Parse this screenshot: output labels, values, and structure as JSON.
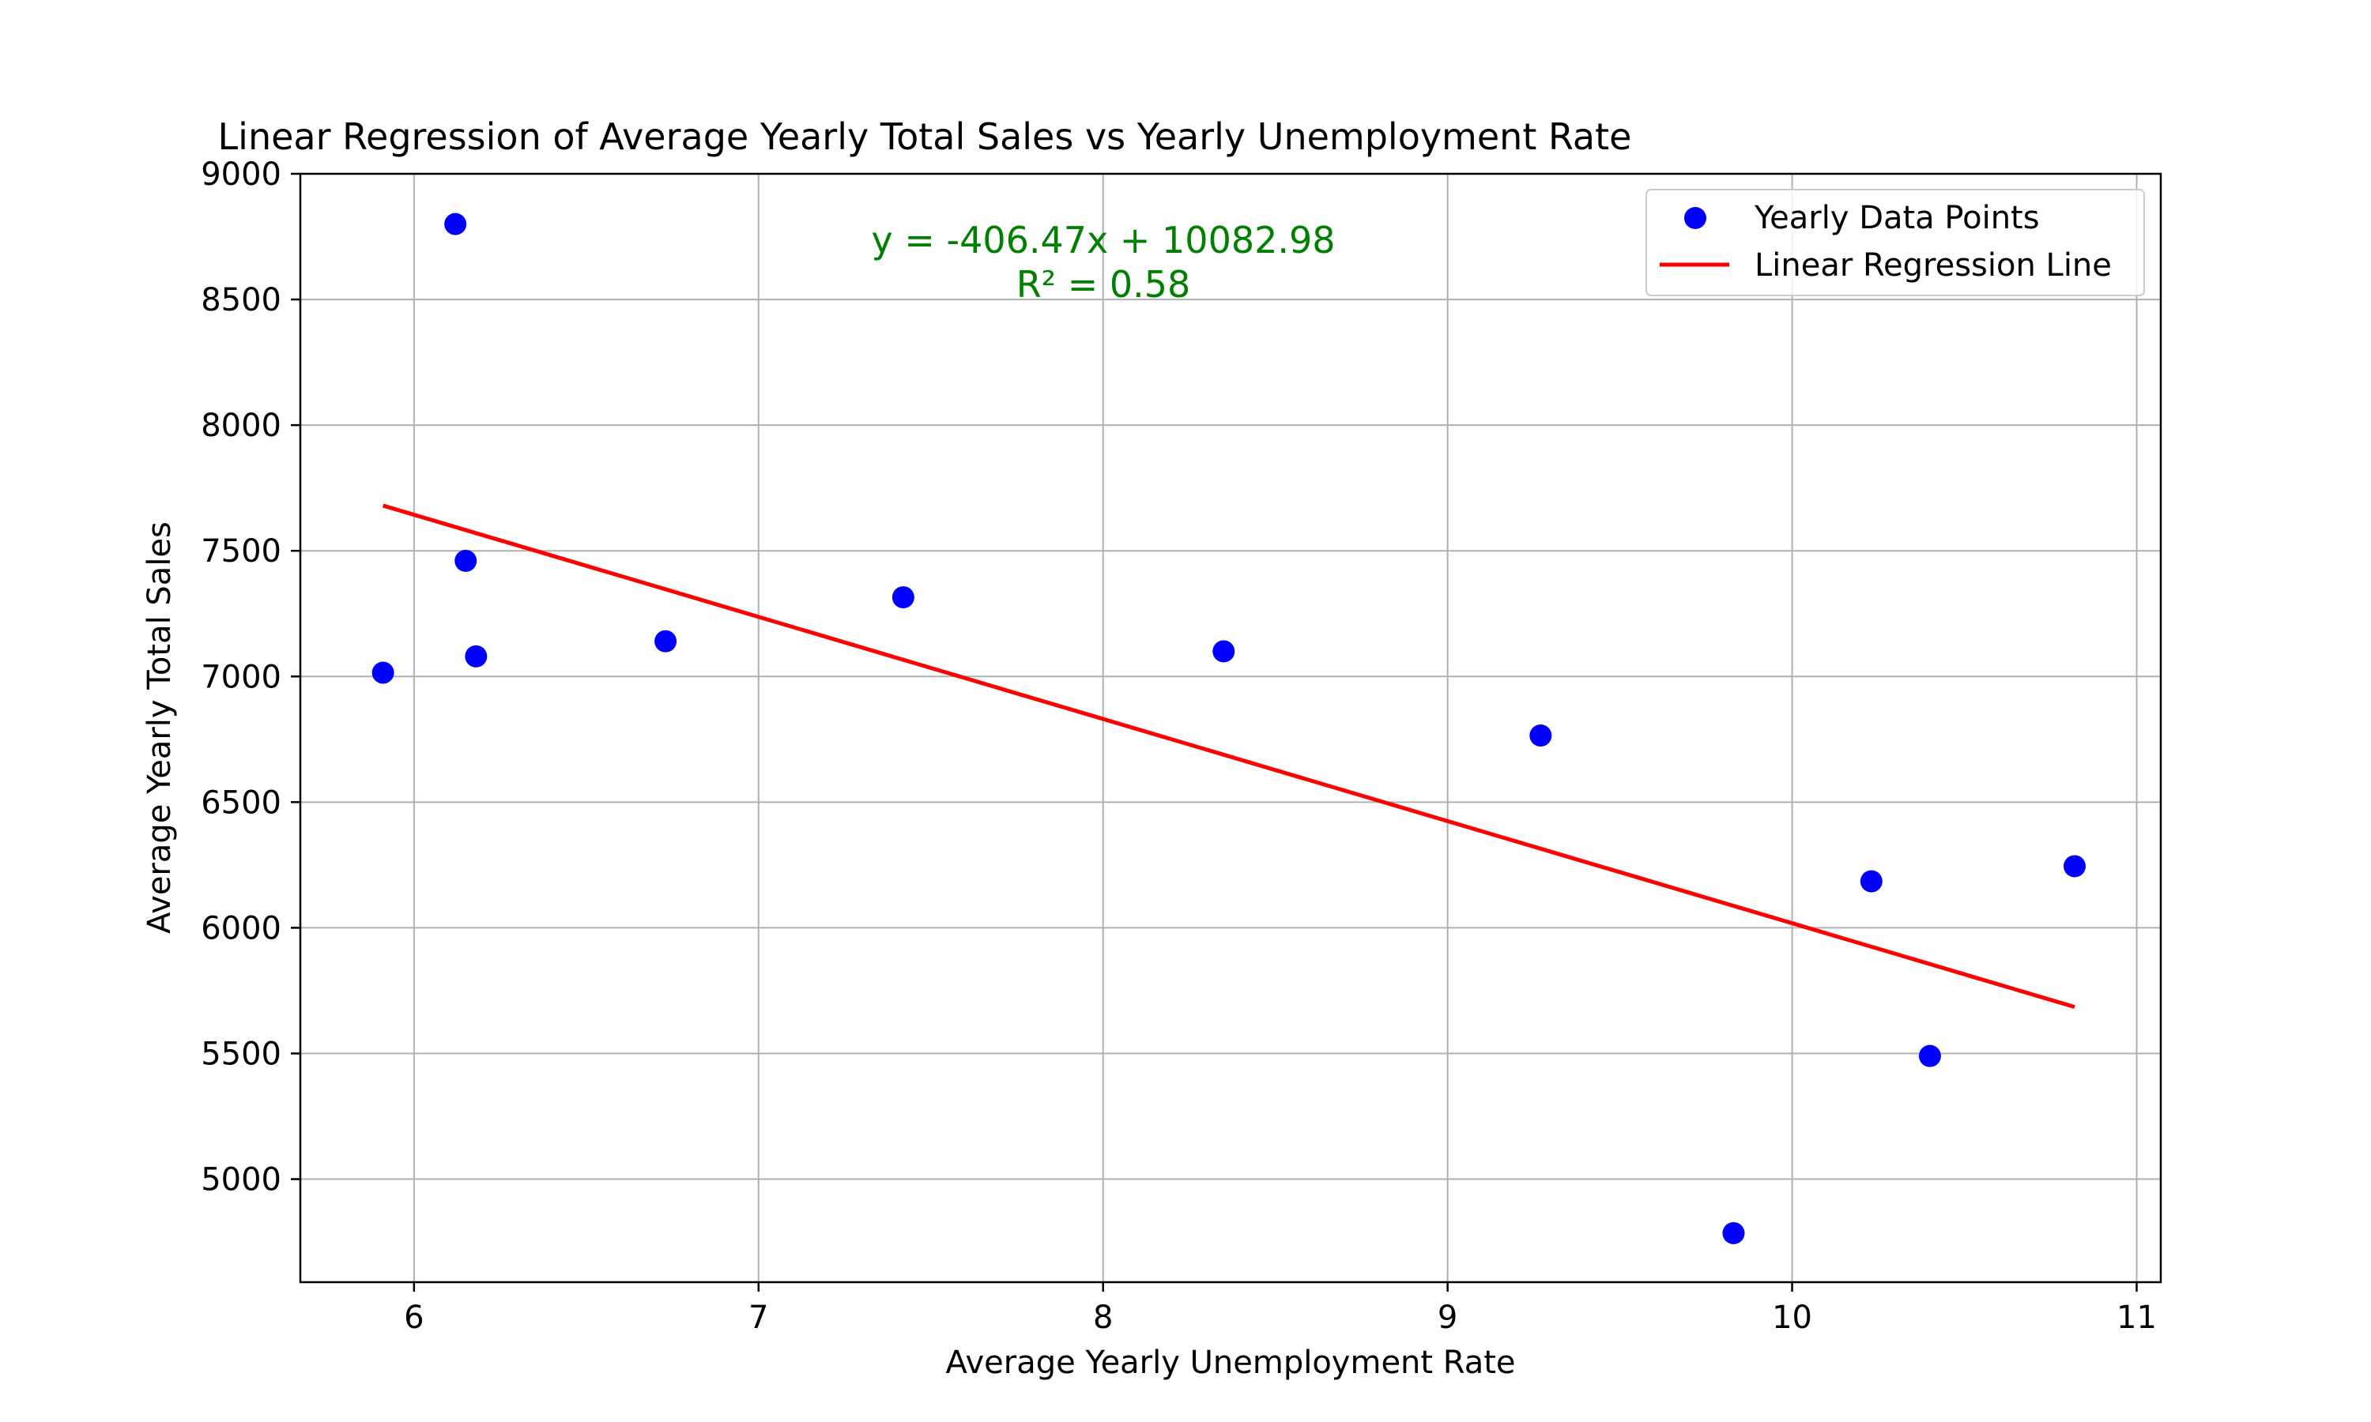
{
  "chart_data": {
    "type": "scatter",
    "title": "Linear Regression of Average Yearly Total Sales vs Yearly Unemployment Rate",
    "xlabel": "Average Yearly Unemployment Rate",
    "ylabel": "Average Yearly Total Sales",
    "xlim": [
      5.67,
      11.07
    ],
    "ylim": [
      4590,
      9000
    ],
    "x_ticks": [
      6,
      7,
      8,
      9,
      10,
      11
    ],
    "y_ticks": [
      5000,
      5500,
      6000,
      6500,
      7000,
      7500,
      8000,
      8500,
      9000
    ],
    "grid": true,
    "legend_position": "top-right",
    "series": [
      {
        "name": "Yearly Data Points",
        "kind": "scatter",
        "color": "#0000ff",
        "points": [
          {
            "x": 5.91,
            "y": 7015
          },
          {
            "x": 6.12,
            "y": 8800
          },
          {
            "x": 6.15,
            "y": 7460
          },
          {
            "x": 6.18,
            "y": 7080
          },
          {
            "x": 6.73,
            "y": 7140
          },
          {
            "x": 7.42,
            "y": 7315
          },
          {
            "x": 8.35,
            "y": 7100
          },
          {
            "x": 9.27,
            "y": 6765
          },
          {
            "x": 9.83,
            "y": 4785
          },
          {
            "x": 10.23,
            "y": 6185
          },
          {
            "x": 10.4,
            "y": 5490
          },
          {
            "x": 10.82,
            "y": 6245
          }
        ]
      },
      {
        "name": "Linear Regression Line",
        "kind": "line",
        "color": "#ff0000",
        "points": [
          {
            "x": 5.91,
            "y": 7680
          },
          {
            "x": 10.82,
            "y": 5685
          }
        ]
      }
    ],
    "annotation": {
      "equation": "y = -406.47x + 10082.98",
      "r_squared": "R² = 0.58",
      "color": "#008000"
    }
  }
}
